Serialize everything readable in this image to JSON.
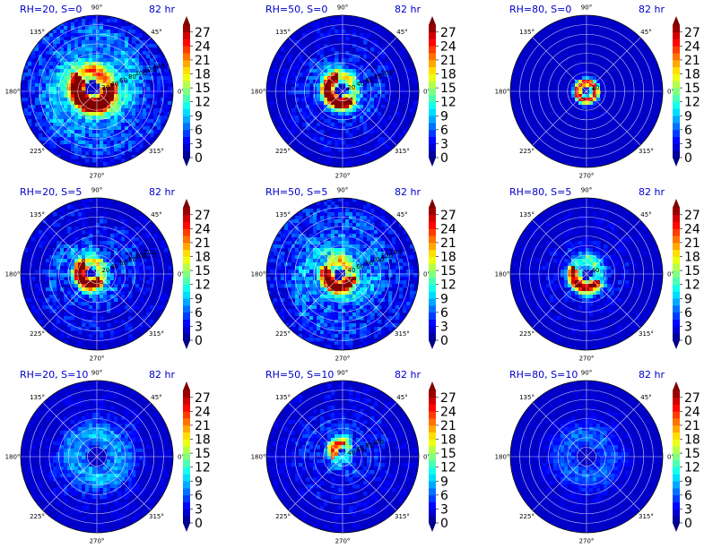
{
  "chart_data": {
    "type": "polar-contourf",
    "colorbar": {
      "ticks": [
        "0",
        "3",
        "6",
        "9",
        "12",
        "15",
        "18",
        "21",
        "24",
        "27"
      ],
      "vmin": 0,
      "vmax": 28.5,
      "colormap": "jet"
    },
    "angle_labels": [
      "0°",
      "45°",
      "90°",
      "135°",
      "180°",
      "225°",
      "270°",
      "315°"
    ],
    "panels": [
      {
        "title": "RH=20, S=0",
        "time": "82 hr",
        "radial_labels": [
          "20",
          "40",
          "60",
          "80",
          "100",
          "120",
          "140"
        ],
        "pattern": {
          "cx": -0.05,
          "cy": 0.04,
          "ring": 0.22,
          "width": 0.1,
          "peak": 28,
          "arcStart": 140,
          "arcLen": 230,
          "bg": 10,
          "spread": 0.85,
          "noise": 0.35
        }
      },
      {
        "title": "RH=50, S=0",
        "time": "82 hr",
        "radial_labels": [
          "20",
          "40",
          "60",
          "80",
          "100"
        ],
        "pattern": {
          "cx": -0.02,
          "cy": 0.02,
          "ring": 0.18,
          "width": 0.08,
          "peak": 28,
          "arcStart": 100,
          "arcLen": 220,
          "bg": 6,
          "spread": 0.6,
          "noise": 0.35
        }
      },
      {
        "title": "RH=80, S=0",
        "time": "82 hr",
        "radial_labels": [
          "20"
        ],
        "pattern": {
          "cx": 0.0,
          "cy": 0.0,
          "ring": 0.12,
          "width": 0.05,
          "peak": 24,
          "arcStart": 0,
          "arcLen": 360,
          "bg": 3,
          "spread": 0.25,
          "noise": 0.2
        }
      },
      {
        "title": "RH=20, S=5",
        "time": "82 hr",
        "radial_labels": [
          "20",
          "40",
          "60",
          "80",
          "100",
          "120"
        ],
        "pattern": {
          "cx": -0.08,
          "cy": 0.02,
          "ring": 0.15,
          "width": 0.08,
          "peak": 28,
          "arcStart": 120,
          "arcLen": 200,
          "bg": 6,
          "spread": 0.6,
          "noise": 0.45
        }
      },
      {
        "title": "RH=50, S=5",
        "time": "82 hr",
        "radial_labels": [
          "40",
          "60",
          "80",
          "100",
          "120",
          "140"
        ],
        "pattern": {
          "cx": -0.05,
          "cy": 0.0,
          "ring": 0.17,
          "width": 0.08,
          "peak": 26,
          "arcStart": 150,
          "arcLen": 200,
          "bg": 8,
          "spread": 0.85,
          "noise": 0.4
        }
      },
      {
        "title": "RH=80, S=5",
        "time": "82 hr",
        "radial_labels": [
          "40"
        ],
        "pattern": {
          "cx": 0.0,
          "cy": 0.0,
          "ring": 0.18,
          "width": 0.08,
          "peak": 25,
          "arcStart": 150,
          "arcLen": 180,
          "bg": 4,
          "spread": 0.5,
          "noise": 0.35
        }
      },
      {
        "title": "RH=20, S=10",
        "time": "82 hr",
        "radial_labels": [],
        "pattern": {
          "cx": 0.0,
          "cy": 0.0,
          "ring": 0.3,
          "width": 0.2,
          "peak": 5,
          "arcStart": 0,
          "arcLen": 360,
          "bg": 3,
          "spread": 0.9,
          "noise": 0.25
        }
      },
      {
        "title": "RH=50, S=10",
        "time": "82 hr",
        "radial_labels": [
          "40",
          "60",
          "80",
          "100"
        ],
        "pattern": {
          "cx": -0.02,
          "cy": 0.08,
          "ring": 0.1,
          "width": 0.08,
          "peak": 20,
          "arcStart": 60,
          "arcLen": 160,
          "bg": 4,
          "spread": 0.7,
          "noise": 0.35
        }
      },
      {
        "title": "RH=80, S=10",
        "time": "82 hr",
        "radial_labels": [],
        "pattern": {
          "cx": 0.0,
          "cy": 0.0,
          "ring": 0.3,
          "width": 0.2,
          "peak": 4,
          "arcStart": 0,
          "arcLen": 360,
          "bg": 2,
          "spread": 0.9,
          "noise": 0.2
        }
      }
    ]
  }
}
